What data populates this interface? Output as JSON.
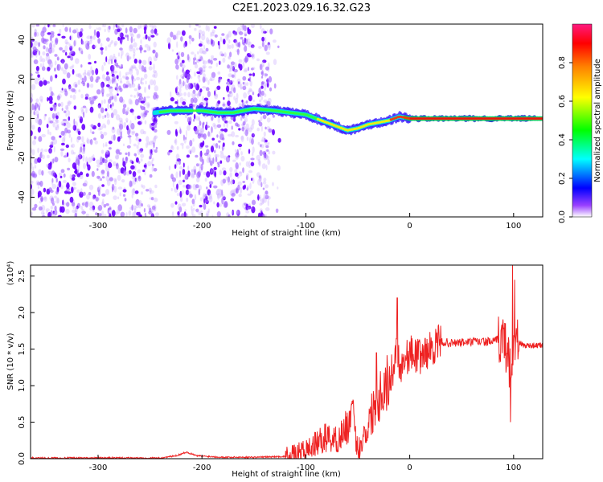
{
  "figure": {
    "title": "C2E1.2023.029.16.32.G23"
  },
  "chart_data": [
    {
      "type": "heatmap",
      "panel": "spectrogram",
      "xlabel": "Height of straight line (km)",
      "ylabel": "Frequency (Hz)",
      "xlim": [
        -365,
        128
      ],
      "ylim": [
        -50,
        48
      ],
      "xticks": [
        -300,
        -200,
        -100,
        0,
        100
      ],
      "xtick_labels": [
        "-300",
        "-200",
        "-100",
        "0",
        "100"
      ],
      "yticks": [
        -40,
        -20,
        0,
        20,
        40
      ],
      "ytick_labels": [
        "-40",
        "-20",
        "0",
        "20",
        "40"
      ],
      "colorbar": {
        "label": "Normalized spectral amplitude",
        "range": [
          0,
          1
        ],
        "ticks": [
          0.0,
          0.2,
          0.4,
          0.6,
          0.8
        ],
        "tick_labels": [
          "0.0",
          "0.2",
          "0.4",
          "0.6",
          "0.8"
        ],
        "colormap": [
          "#ffffff",
          "#7f00ff",
          "#0000ff",
          "#00ffff",
          "#00ff00",
          "#ffff00",
          "#ff8000",
          "#ff0000",
          "#ff0080"
        ]
      },
      "signal_track": {
        "x": [
          -245,
          -230,
          -215,
          -200,
          -185,
          -170,
          -150,
          -130,
          -115,
          -100,
          -90,
          -80,
          -70,
          -60,
          -50,
          -40,
          -30,
          -20,
          -10,
          0,
          30,
          60,
          90,
          100,
          128
        ],
        "freq": [
          3,
          4,
          4,
          4,
          3,
          3,
          5,
          4,
          3,
          2,
          0,
          -2,
          -4,
          -6,
          -5,
          -3,
          -2,
          -1,
          1,
          0,
          0,
          0,
          0,
          0,
          0
        ]
      },
      "noise_region": {
        "x": [
          -365,
          -125
        ],
        "freq": [
          -50,
          48
        ]
      }
    },
    {
      "type": "line",
      "panel": "snr",
      "xlabel": "Height of straight line (km)",
      "ylabel": "SNR (10 * v/v)",
      "y_multiplier": "(x10⁴)",
      "xlim": [
        -365,
        128
      ],
      "ylim": [
        0,
        2.65
      ],
      "xticks": [
        -300,
        -200,
        -100,
        0,
        100
      ],
      "xtick_labels": [
        "-300",
        "-200",
        "-100",
        "0",
        "100"
      ],
      "yticks": [
        0.0,
        0.5,
        1.0,
        1.5,
        2.0,
        2.5
      ],
      "ytick_labels": [
        "0.0",
        "0.5",
        "1.0",
        "1.5",
        "2.0",
        "2.5"
      ],
      "color": "#ee2222",
      "x": [
        -365,
        -300,
        -240,
        -225,
        -215,
        -205,
        -180,
        -150,
        -120,
        -110,
        -100,
        -90,
        -80,
        -70,
        -60,
        -55,
        -50,
        -45,
        -40,
        -35,
        -30,
        -25,
        -20,
        -15,
        -12,
        -10,
        -5,
        0,
        10,
        20,
        30,
        40,
        60,
        80,
        90,
        95,
        98,
        100,
        103,
        110,
        128
      ],
      "y": [
        0.01,
        0.01,
        0.01,
        0.04,
        0.09,
        0.04,
        0.02,
        0.02,
        0.03,
        0.06,
        0.12,
        0.2,
        0.3,
        0.25,
        0.45,
        0.6,
        0.1,
        0.3,
        0.45,
        0.7,
        0.85,
        1.0,
        1.05,
        1.3,
        1.6,
        1.25,
        1.35,
        1.45,
        1.4,
        1.5,
        1.6,
        1.58,
        1.6,
        1.6,
        1.65,
        1.4,
        1.1,
        1.55,
        1.6,
        1.55,
        1.55
      ],
      "spikes": [
        {
          "x": -12,
          "y": 2.2
        },
        {
          "x": -32,
          "y": 1.45
        },
        {
          "x": 97,
          "y": 0.5
        },
        {
          "x": 99,
          "y": 2.65
        },
        {
          "x": 101,
          "y": 2.45
        }
      ]
    }
  ]
}
